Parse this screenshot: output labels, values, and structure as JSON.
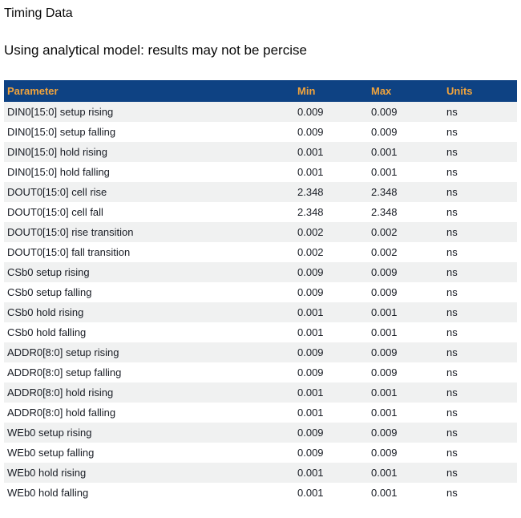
{
  "page": {
    "title": "Timing Data",
    "subtitle": "Using analytical model: results may not be percise"
  },
  "table": {
    "columns": [
      "Parameter",
      "Min",
      "Max",
      "Units"
    ],
    "rows": [
      {
        "parameter": "DIN0[15:0] setup rising",
        "min": "0.009",
        "max": "0.009",
        "units": "ns"
      },
      {
        "parameter": "DIN0[15:0] setup falling",
        "min": "0.009",
        "max": "0.009",
        "units": "ns"
      },
      {
        "parameter": "DIN0[15:0] hold rising",
        "min": "0.001",
        "max": "0.001",
        "units": "ns"
      },
      {
        "parameter": "DIN0[15:0] hold falling",
        "min": "0.001",
        "max": "0.001",
        "units": "ns"
      },
      {
        "parameter": "DOUT0[15:0] cell rise",
        "min": "2.348",
        "max": "2.348",
        "units": "ns"
      },
      {
        "parameter": "DOUT0[15:0] cell fall",
        "min": "2.348",
        "max": "2.348",
        "units": "ns"
      },
      {
        "parameter": "DOUT0[15:0] rise transition",
        "min": "0.002",
        "max": "0.002",
        "units": "ns"
      },
      {
        "parameter": "DOUT0[15:0] fall transition",
        "min": "0.002",
        "max": "0.002",
        "units": "ns"
      },
      {
        "parameter": "CSb0 setup rising",
        "min": "0.009",
        "max": "0.009",
        "units": "ns"
      },
      {
        "parameter": "CSb0 setup falling",
        "min": "0.009",
        "max": "0.009",
        "units": "ns"
      },
      {
        "parameter": "CSb0 hold rising",
        "min": "0.001",
        "max": "0.001",
        "units": "ns"
      },
      {
        "parameter": "CSb0 hold falling",
        "min": "0.001",
        "max": "0.001",
        "units": "ns"
      },
      {
        "parameter": "ADDR0[8:0] setup rising",
        "min": "0.009",
        "max": "0.009",
        "units": "ns"
      },
      {
        "parameter": "ADDR0[8:0] setup falling",
        "min": "0.009",
        "max": "0.009",
        "units": "ns"
      },
      {
        "parameter": "ADDR0[8:0] hold rising",
        "min": "0.001",
        "max": "0.001",
        "units": "ns"
      },
      {
        "parameter": "ADDR0[8:0] hold falling",
        "min": "0.001",
        "max": "0.001",
        "units": "ns"
      },
      {
        "parameter": "WEb0 setup rising",
        "min": "0.009",
        "max": "0.009",
        "units": "ns"
      },
      {
        "parameter": "WEb0 setup falling",
        "min": "0.009",
        "max": "0.009",
        "units": "ns"
      },
      {
        "parameter": "WEb0 hold rising",
        "min": "0.001",
        "max": "0.001",
        "units": "ns"
      },
      {
        "parameter": "WEb0 hold falling",
        "min": "0.001",
        "max": "0.001",
        "units": "ns"
      }
    ]
  },
  "colors": {
    "header_bg": "#0e4283",
    "header_text": "#f0a33c",
    "row_alt_bg": "#f0f1f1",
    "body_text": "#181c24"
  }
}
